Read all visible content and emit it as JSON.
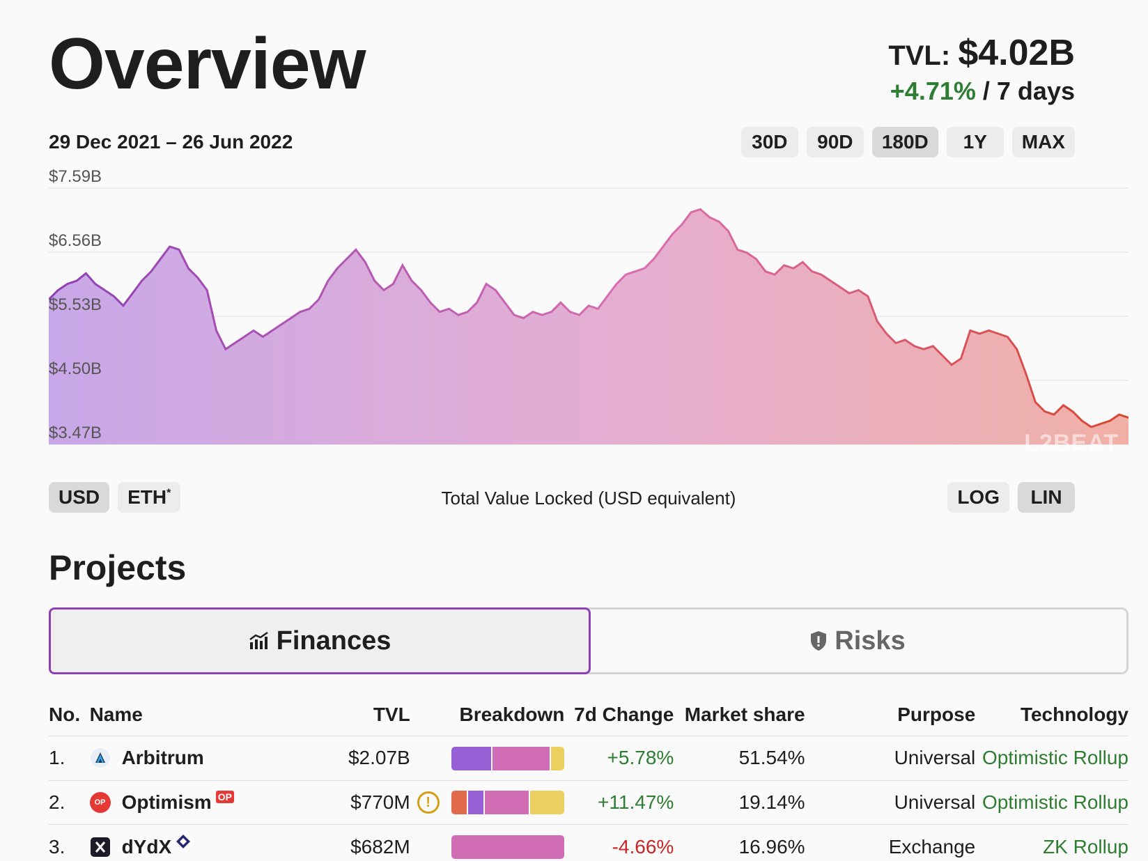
{
  "header": {
    "title": "Overview",
    "tvl_label": "TVL:",
    "tvl_value": "$4.02B",
    "change": "+4.71%",
    "change_period": "/ 7 days"
  },
  "date_range": "29 Dec 2021 – 26 Jun 2022",
  "periods": [
    "30D",
    "90D",
    "180D",
    "1Y",
    "MAX"
  ],
  "active_period": "180D",
  "currency": {
    "usd": "USD",
    "eth": "ETH",
    "eth_mark": "*"
  },
  "chart_caption": "Total Value Locked (USD equivalent)",
  "scale": {
    "log": "LOG",
    "lin": "LIN",
    "active": "LIN"
  },
  "watermark": "L2BEAT",
  "chart_data": {
    "type": "area",
    "ylabels": [
      "$7.59B",
      "$6.56B",
      "$5.53B",
      "$4.50B",
      "$3.47B"
    ],
    "ylim": [
      3.47,
      7.59
    ],
    "unit": "USD billions",
    "x_start": "2021-12-29",
    "x_end": "2022-06-26",
    "values": [
      5.8,
      5.95,
      6.05,
      6.1,
      6.22,
      6.05,
      5.95,
      5.85,
      5.7,
      5.9,
      6.1,
      6.25,
      6.45,
      6.65,
      6.6,
      6.3,
      6.15,
      5.95,
      5.3,
      5.0,
      5.1,
      5.2,
      5.3,
      5.2,
      5.3,
      5.4,
      5.5,
      5.6,
      5.65,
      5.8,
      6.1,
      6.3,
      6.45,
      6.6,
      6.4,
      6.1,
      5.95,
      6.05,
      6.35,
      6.1,
      5.95,
      5.75,
      5.6,
      5.65,
      5.55,
      5.6,
      5.75,
      6.05,
      5.95,
      5.75,
      5.55,
      5.5,
      5.6,
      5.55,
      5.6,
      5.75,
      5.6,
      5.55,
      5.7,
      5.65,
      5.85,
      6.05,
      6.2,
      6.25,
      6.3,
      6.45,
      6.65,
      6.85,
      7.0,
      7.2,
      7.25,
      7.12,
      7.05,
      6.9,
      6.6,
      6.55,
      6.45,
      6.25,
      6.2,
      6.35,
      6.3,
      6.4,
      6.25,
      6.2,
      6.1,
      6.0,
      5.9,
      5.95,
      5.85,
      5.45,
      5.25,
      5.1,
      5.15,
      5.05,
      5.0,
      5.05,
      4.9,
      4.75,
      4.85,
      5.3,
      5.25,
      5.3,
      5.25,
      5.2,
      5.0,
      4.6,
      4.15,
      4.0,
      3.95,
      4.1,
      4.0,
      3.85,
      3.75,
      3.8,
      3.85,
      3.95,
      3.9
    ]
  },
  "projects_heading": "Projects",
  "tabs": {
    "finances": "Finances",
    "risks": "Risks"
  },
  "table": {
    "headers": [
      "No.",
      "Name",
      "TVL",
      "Breakdown",
      "7d Change",
      "Market share",
      "Purpose",
      "Technology"
    ],
    "rows": [
      {
        "no": "1.",
        "name": "Arbitrum",
        "tvl": "$2.07B",
        "change": "+5.78%",
        "share": "51.54%",
        "purpose": "Universal",
        "tech": "Optimistic Rollup"
      },
      {
        "no": "2.",
        "name": "Optimism",
        "badge": "OP",
        "tvl": "$770M",
        "change": "+11.47%",
        "share": "19.14%",
        "purpose": "Universal",
        "tech": "Optimistic Rollup"
      },
      {
        "no": "3.",
        "name": "dYdX",
        "tvl": "$682M",
        "change": "-4.66%",
        "share": "16.96%",
        "purpose": "Exchange",
        "tech": "ZK Rollup"
      }
    ]
  },
  "colors": {
    "purple_start": "#8e3fb4",
    "pink_mid": "#d96fb0",
    "red_end": "#d9452f",
    "positive": "#2e7d32",
    "negative": "#c62828",
    "tech_link": "#2e7d32"
  }
}
